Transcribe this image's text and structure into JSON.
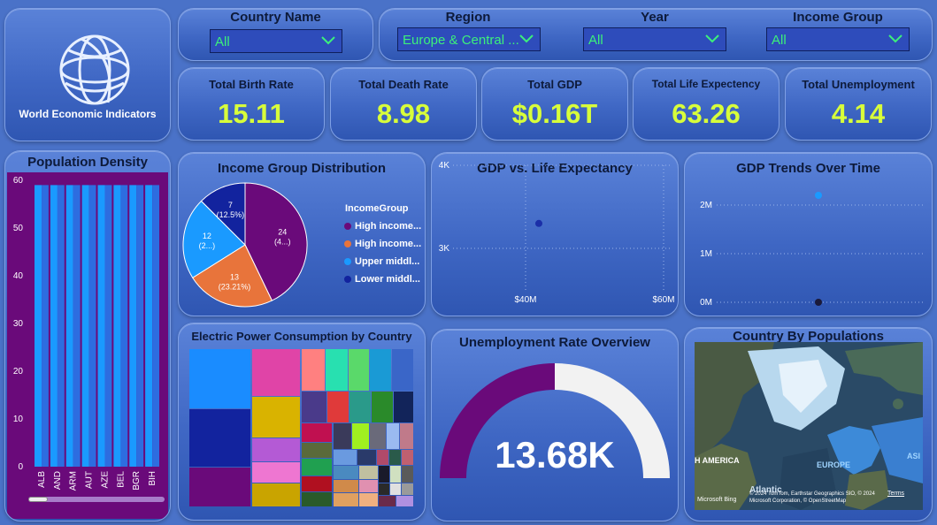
{
  "logo": {
    "title": "World Economic Indicators"
  },
  "filters": [
    {
      "label": "Country Name",
      "value": "All"
    },
    {
      "label": "Region",
      "value": "Europe & Central ..."
    },
    {
      "label": "Year",
      "value": "All"
    },
    {
      "label": "Income Group",
      "value": "All"
    }
  ],
  "kpis": [
    {
      "label": "Total Birth Rate",
      "value": "15.11"
    },
    {
      "label": "Total Death Rate",
      "value": "8.98"
    },
    {
      "label": "Total GDP",
      "value": "$0.16T"
    },
    {
      "label": "Total Life Expectency",
      "value": "63.26"
    },
    {
      "label": "Total Unemployment",
      "value": "4.14"
    }
  ],
  "colors": {
    "accent_green": "#3cf07b",
    "kpi_yellow": "#d8ff3a",
    "purple": "#6a0a7a"
  },
  "population_density": {
    "title": "Population Density",
    "chart_data": {
      "type": "bar",
      "categories": [
        "ALB",
        "AND",
        "ARM",
        "AUT",
        "AZE",
        "BEL",
        "BGR",
        "BIH"
      ],
      "values": [
        59,
        59,
        59,
        59,
        59,
        59,
        59,
        59
      ],
      "ylim": [
        0,
        60
      ],
      "yticks": [
        "0",
        "10",
        "20",
        "30",
        "40",
        "50",
        "60"
      ]
    }
  },
  "income_pie": {
    "title": "Income Group Distribution",
    "legend_title": "IncomeGroup",
    "chart_data": {
      "type": "pie",
      "slices": [
        {
          "name": "High income...",
          "value": 24,
          "label": "24",
          "pct": "(4...)",
          "color": "#6a0a7a"
        },
        {
          "name": "High income...",
          "value": 13,
          "label": "13",
          "pct": "(23.21%)",
          "color": "#e8743b"
        },
        {
          "name": "Upper middl...",
          "value": 12,
          "label": "12",
          "pct": "(2...)",
          "color": "#1a9aff"
        },
        {
          "name": "Lower middl...",
          "value": 7,
          "label": "7",
          "pct": "(12.5%)",
          "color": "#12239e"
        }
      ]
    }
  },
  "gdp_life": {
    "title": "GDP vs. Life Expectancy",
    "chart_data": {
      "type": "scatter",
      "yticks": [
        "4K",
        "3K"
      ],
      "xticks": [
        "$40M",
        "$60M"
      ],
      "points": [
        {
          "x": 40,
          "y": 3.3
        }
      ]
    }
  },
  "gdp_trends": {
    "title": "GDP Trends Over Time",
    "chart_data": {
      "type": "scatter",
      "yticks": [
        "2M",
        "1M",
        "0M"
      ],
      "points": [
        {
          "y": 2.2,
          "color": "#1a9aff"
        },
        {
          "y": 0,
          "color": "#1a1a3a"
        }
      ]
    }
  },
  "electric": {
    "title": "Electric Power Consumption by Country"
  },
  "unemployment": {
    "title": "Unemployment Rate Overview",
    "value": "13.68K",
    "fraction": 0.5
  },
  "map": {
    "title": "Country By Populations",
    "labels": {
      "america": "H AMERICA",
      "atlantic": "Atlantic",
      "europe": "EUROPE",
      "asia": "ASI"
    },
    "copyright": "© 2024 TomTom, Earthstar Geographics SIO, © 2024 Microsoft Corporation, © OpenStreetMap",
    "terms": "Terms",
    "bing": "Microsoft Bing"
  }
}
